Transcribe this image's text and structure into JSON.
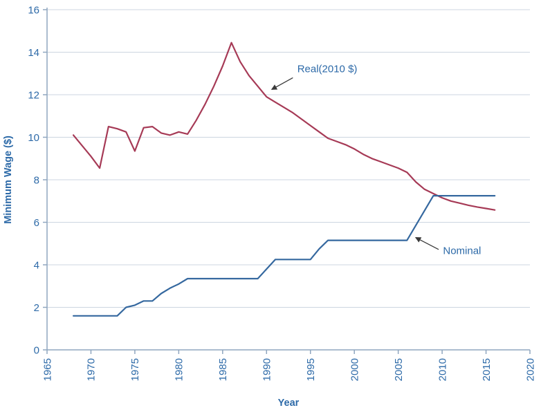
{
  "page": {
    "background": "#ffffff"
  },
  "chart_data": {
    "type": "line",
    "title": "",
    "xlabel": "Year",
    "ylabel": "Minimum Wage ($)",
    "xlim": [
      1965,
      2020
    ],
    "ylim": [
      0,
      16
    ],
    "x_ticks": [
      1965,
      1970,
      1975,
      1980,
      1985,
      1990,
      1995,
      2000,
      2005,
      2010,
      2015,
      2020
    ],
    "y_ticks": [
      0,
      2,
      4,
      6,
      8,
      10,
      12,
      14,
      16
    ],
    "grid": "horizontal",
    "legend": "inline-annotations",
    "x": [
      1968,
      1969,
      1970,
      1971,
      1972,
      1973,
      1974,
      1975,
      1976,
      1977,
      1978,
      1979,
      1980,
      1981,
      1982,
      1983,
      1984,
      1985,
      1986,
      1987,
      1988,
      1989,
      1990,
      1991,
      1992,
      1993,
      1994,
      1995,
      1996,
      1997,
      1998,
      1999,
      2000,
      2001,
      2002,
      2003,
      2004,
      2005,
      2006,
      2007,
      2008,
      2009,
      2010,
      2011,
      2012,
      2013,
      2014,
      2015,
      2016
    ],
    "series": [
      {
        "name": "Real(2010 $)",
        "color": "#a63a56",
        "values": [
          10.1,
          9.6,
          9.1,
          8.55,
          10.5,
          10.4,
          10.25,
          9.35,
          10.45,
          10.5,
          10.2,
          10.1,
          10.25,
          10.15,
          10.8,
          11.55,
          12.4,
          13.35,
          14.45,
          13.55,
          12.9,
          12.4,
          11.9,
          11.65,
          11.4,
          11.15,
          10.85,
          10.55,
          10.25,
          9.95,
          9.8,
          9.65,
          9.45,
          9.2,
          9.0,
          8.85,
          8.7,
          8.55,
          8.35,
          7.9,
          7.55,
          7.35,
          7.15,
          7.0,
          6.9,
          6.8,
          6.72,
          6.65,
          6.58
        ]
      },
      {
        "name": "Nominal",
        "color": "#35689f",
        "values": [
          1.6,
          1.6,
          1.6,
          1.6,
          1.6,
          1.6,
          2.0,
          2.1,
          2.3,
          2.3,
          2.65,
          2.9,
          3.1,
          3.35,
          3.35,
          3.35,
          3.35,
          3.35,
          3.35,
          3.35,
          3.35,
          3.35,
          3.8,
          4.25,
          4.25,
          4.25,
          4.25,
          4.25,
          4.75,
          5.15,
          5.15,
          5.15,
          5.15,
          5.15,
          5.15,
          5.15,
          5.15,
          5.15,
          5.15,
          5.85,
          6.55,
          7.25,
          7.25,
          7.25,
          7.25,
          7.25,
          7.25,
          7.25,
          7.25
        ]
      }
    ],
    "annotations": [
      {
        "label": "Real(2010 $)",
        "text_x": 1993.5,
        "text_y": 13.05,
        "arrow": {
          "x1": 1993.0,
          "y1": 12.8,
          "x2": 1990.6,
          "y2": 12.25
        }
      },
      {
        "label": "Nominal",
        "text_x": 2010.1,
        "text_y": 4.5,
        "arrow": {
          "x1": 2009.6,
          "y1": 4.72,
          "x2": 2007.0,
          "y2": 5.28
        }
      }
    ],
    "colors": {
      "axis": "#8fa6bf",
      "grid": "#ccd5e0",
      "labels": "#2d6aa8",
      "arrow": "#3a3a3a"
    }
  }
}
